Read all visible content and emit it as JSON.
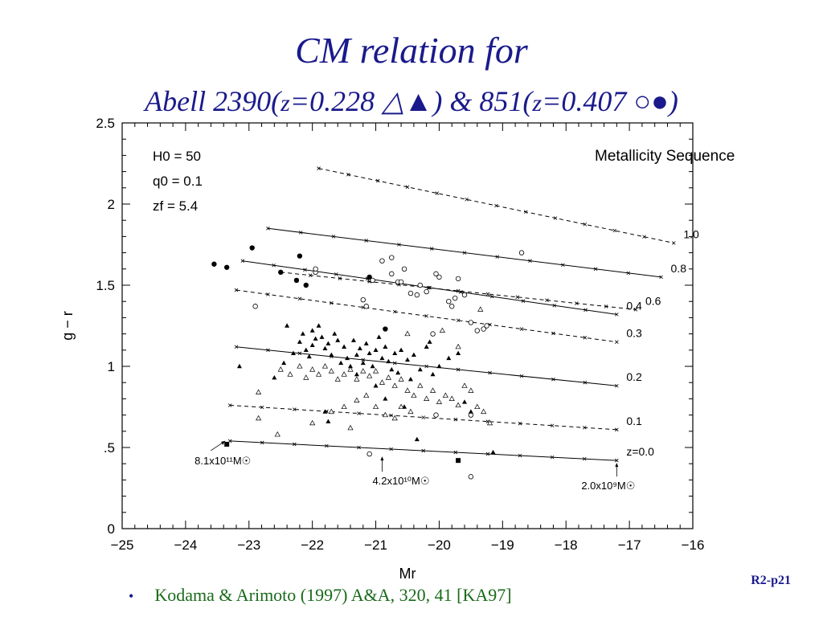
{
  "title_line1": "CM relation for",
  "title_line2_a": "Abell 2390(",
  "title_z1": "z",
  "title_line2_b": "=0.228 △▲) & 851(",
  "title_z2": "z",
  "title_line2_c": "=0.407 ○●)",
  "metallicity_label": "Metallicity Sequence",
  "reference": "Kodama & Arimoto (1997) A&A, 320, 41 [KA97]",
  "bullet": "•",
  "page_id": "R2-p21",
  "params": [
    "H0 = 50",
    "q0 = 0.1",
    "zf = 5.4"
  ],
  "mass_labels": [
    {
      "text": "8.1x10¹¹M☉",
      "mr": -23.35,
      "gr": 0.55
    },
    {
      "text": "4.2x10¹⁰M☉",
      "mr": -20.9,
      "gr": 0.46
    },
    {
      "text": "2.0x10⁹M☉",
      "mr": -17.2,
      "gr": 0.42
    }
  ],
  "colors": {
    "title": "#1a1a8c",
    "reference": "#1a6b1a",
    "bullet": "#1a1a8c"
  },
  "chart_data": {
    "type": "scatter",
    "xlabel": "Mr",
    "ylabel": "g − r",
    "xlim": [
      -25,
      -16
    ],
    "ylim": [
      0,
      2.5
    ],
    "xticks": [
      -25,
      -24,
      -23,
      -22,
      -21,
      -20,
      -19,
      -18,
      -17,
      -16
    ],
    "yticks": [
      0,
      0.5,
      1,
      1.5,
      2,
      2.5
    ],
    "ytick_labels": [
      "0",
      ".5",
      "1",
      "1.5",
      "2",
      "2.5"
    ],
    "sequences": [
      {
        "name": "1.0",
        "style": "dashed",
        "x": [
          -21.9,
          -16.3
        ],
        "y": [
          2.22,
          1.76
        ]
      },
      {
        "name": "0.8",
        "style": "solid",
        "x": [
          -22.7,
          -16.5
        ],
        "y": [
          1.85,
          1.55
        ]
      },
      {
        "name": "0.6",
        "style": "dashed",
        "x": [
          -22.5,
          -16.9
        ],
        "y": [
          1.58,
          1.35
        ]
      },
      {
        "name": "0.4",
        "style": "solid",
        "x": [
          -23.1,
          -17.2
        ],
        "y": [
          1.65,
          1.32
        ]
      },
      {
        "name": "0.3",
        "style": "dashed",
        "x": [
          -23.2,
          -17.2
        ],
        "y": [
          1.47,
          1.15
        ]
      },
      {
        "name": "0.2",
        "style": "solid",
        "x": [
          -23.2,
          -17.2
        ],
        "y": [
          1.12,
          0.88
        ]
      },
      {
        "name": "0.1",
        "style": "dashed",
        "x": [
          -23.3,
          -17.2
        ],
        "y": [
          0.76,
          0.61
        ]
      },
      {
        "name": "z=0.0",
        "style": "solid",
        "x": [
          -23.3,
          -17.2
        ],
        "y": [
          0.54,
          0.42
        ]
      }
    ],
    "series": [
      {
        "name": "851 filled circle",
        "marker": "filled-circle",
        "points": [
          [
            -23.55,
            1.63
          ],
          [
            -23.35,
            1.61
          ],
          [
            -22.95,
            1.73
          ],
          [
            -22.5,
            1.58
          ],
          [
            -22.25,
            1.53
          ],
          [
            -22.2,
            1.68
          ],
          [
            -22.1,
            1.5
          ],
          [
            -21.1,
            1.55
          ],
          [
            -20.85,
            1.23
          ]
        ]
      },
      {
        "name": "851 open circle",
        "marker": "open-circle",
        "points": [
          [
            -22.9,
            1.37
          ],
          [
            -21.95,
            1.58
          ],
          [
            -21.95,
            1.6
          ],
          [
            -21.2,
            1.41
          ],
          [
            -21.15,
            1.37
          ],
          [
            -21.05,
            1.53
          ],
          [
            -20.9,
            1.65
          ],
          [
            -20.75,
            1.67
          ],
          [
            -20.75,
            1.57
          ],
          [
            -20.65,
            1.52
          ],
          [
            -20.6,
            1.52
          ],
          [
            -20.55,
            1.6
          ],
          [
            -20.45,
            1.45
          ],
          [
            -20.35,
            1.44
          ],
          [
            -20.3,
            1.5
          ],
          [
            -20.2,
            1.46
          ],
          [
            -20.05,
            1.57
          ],
          [
            -20.0,
            1.55
          ],
          [
            -19.85,
            1.4
          ],
          [
            -19.8,
            1.37
          ],
          [
            -19.75,
            1.42
          ],
          [
            -19.7,
            1.54
          ],
          [
            -19.6,
            1.44
          ],
          [
            -19.5,
            1.27
          ],
          [
            -19.4,
            1.22
          ],
          [
            -19.3,
            1.23
          ],
          [
            -19.25,
            1.25
          ],
          [
            -18.7,
            1.7
          ],
          [
            -20.1,
            1.2
          ],
          [
            -20.05,
            0.7
          ],
          [
            -19.5,
            0.7
          ],
          [
            -21.1,
            0.46
          ],
          [
            -19.5,
            0.32
          ]
        ]
      },
      {
        "name": "2390 filled triangle",
        "marker": "filled-triangle",
        "points": [
          [
            -23.15,
            1.0
          ],
          [
            -22.45,
            1.02
          ],
          [
            -22.3,
            1.08
          ],
          [
            -22.2,
            1.15
          ],
          [
            -22.15,
            1.2
          ],
          [
            -22.1,
            1.1
          ],
          [
            -22.05,
            1.06
          ],
          [
            -22.0,
            1.13
          ],
          [
            -21.95,
            1.17
          ],
          [
            -21.9,
            1.25
          ],
          [
            -21.85,
            1.18
          ],
          [
            -21.8,
            1.11
          ],
          [
            -21.75,
            1.14
          ],
          [
            -21.7,
            1.07
          ],
          [
            -21.65,
            1.2
          ],
          [
            -21.55,
            1.02
          ],
          [
            -21.5,
            1.12
          ],
          [
            -21.45,
            1.05
          ],
          [
            -21.4,
            1.0
          ],
          [
            -21.35,
            1.16
          ],
          [
            -21.3,
            1.07
          ],
          [
            -21.25,
            1.11
          ],
          [
            -21.2,
            1.02
          ],
          [
            -21.15,
            1.14
          ],
          [
            -21.1,
            1.08
          ],
          [
            -21.05,
            1.0
          ],
          [
            -21.0,
            1.1
          ],
          [
            -20.95,
            1.18
          ],
          [
            -20.9,
            1.05
          ],
          [
            -20.85,
            1.12
          ],
          [
            -20.8,
            1.03
          ],
          [
            -20.75,
            0.98
          ],
          [
            -20.7,
            1.08
          ],
          [
            -20.65,
            0.96
          ],
          [
            -20.6,
            1.1
          ],
          [
            -20.5,
            1.04
          ],
          [
            -20.45,
            0.92
          ],
          [
            -20.4,
            1.07
          ],
          [
            -20.3,
            0.98
          ],
          [
            -20.2,
            1.12
          ],
          [
            -20.1,
            0.95
          ],
          [
            -20.0,
            1.0
          ],
          [
            -19.85,
            1.05
          ],
          [
            -19.7,
            1.08
          ],
          [
            -22.0,
            1.22
          ],
          [
            -21.6,
            1.16
          ],
          [
            -21.3,
            0.95
          ],
          [
            -21.0,
            0.88
          ],
          [
            -20.85,
            0.8
          ],
          [
            -20.55,
            0.75
          ],
          [
            -21.75,
            0.66
          ],
          [
            -20.35,
            0.55
          ],
          [
            -19.15,
            0.47
          ],
          [
            -19.6,
            0.78
          ],
          [
            -19.5,
            0.72
          ],
          [
            -22.6,
            0.93
          ],
          [
            -21.8,
            0.72
          ],
          [
            -22.4,
            1.25
          ],
          [
            -20.15,
            1.15
          ]
        ]
      },
      {
        "name": "2390 open triangle",
        "marker": "open-triangle",
        "points": [
          [
            -22.5,
            0.98
          ],
          [
            -22.35,
            0.95
          ],
          [
            -22.2,
            1.0
          ],
          [
            -22.1,
            0.93
          ],
          [
            -22.0,
            0.98
          ],
          [
            -21.9,
            0.95
          ],
          [
            -21.8,
            1.0
          ],
          [
            -21.7,
            0.97
          ],
          [
            -21.6,
            0.92
          ],
          [
            -21.5,
            0.95
          ],
          [
            -21.4,
            0.98
          ],
          [
            -21.3,
            0.92
          ],
          [
            -21.2,
            0.97
          ],
          [
            -21.1,
            0.94
          ],
          [
            -21.0,
            0.97
          ],
          [
            -20.9,
            0.9
          ],
          [
            -20.8,
            0.93
          ],
          [
            -20.7,
            0.88
          ],
          [
            -20.6,
            0.92
          ],
          [
            -20.5,
            0.85
          ],
          [
            -20.4,
            0.82
          ],
          [
            -20.3,
            0.88
          ],
          [
            -20.2,
            0.8
          ],
          [
            -20.1,
            0.85
          ],
          [
            -20.0,
            0.78
          ],
          [
            -19.9,
            0.82
          ],
          [
            -19.8,
            0.8
          ],
          [
            -19.7,
            0.76
          ],
          [
            -19.6,
            0.88
          ],
          [
            -19.5,
            0.85
          ],
          [
            -19.4,
            0.75
          ],
          [
            -19.3,
            0.72
          ],
          [
            -19.2,
            0.65
          ],
          [
            -21.7,
            0.72
          ],
          [
            -21.5,
            0.75
          ],
          [
            -21.3,
            0.79
          ],
          [
            -21.15,
            0.82
          ],
          [
            -21.0,
            0.75
          ],
          [
            -20.85,
            0.7
          ],
          [
            -20.7,
            0.68
          ],
          [
            -20.6,
            0.75
          ],
          [
            -20.45,
            0.72
          ],
          [
            -22.0,
            0.65
          ],
          [
            -22.85,
            0.84
          ],
          [
            -22.85,
            0.68
          ],
          [
            -22.55,
            0.58
          ],
          [
            -21.4,
            0.62
          ],
          [
            -19.35,
            1.35
          ],
          [
            -19.7,
            1.12
          ],
          [
            -20.5,
            1.2
          ],
          [
            -19.95,
            1.22
          ]
        ]
      },
      {
        "name": "filled square",
        "marker": "filled-square",
        "points": [
          [
            -23.35,
            0.52
          ],
          [
            -19.7,
            0.42
          ]
        ]
      }
    ]
  }
}
